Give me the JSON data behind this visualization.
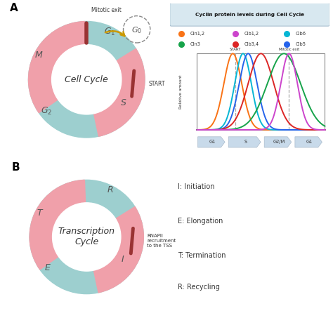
{
  "fig_width": 4.74,
  "fig_height": 4.53,
  "dpi": 100,
  "bg_color": "#ffffff",
  "light_blue": "#9dcfcf",
  "light_pink": "#f0a0aa",
  "dark_red": "#993333",
  "gold": "#cc9900",
  "panel_A_label": "A",
  "panel_B_label": "B",
  "cell_cycle_title": "Cell Cycle",
  "transcription_cycle_title": "Transcription\nCycle",
  "cyclin_box_title": "Cyclin protein levels during Cell Cycle",
  "legend_items": [
    {
      "label": "Cln1,2",
      "color": "#f97316"
    },
    {
      "label": "Clb1,2",
      "color": "#cc44cc"
    },
    {
      "label": "Clb6",
      "color": "#06b6d4"
    },
    {
      "label": "Cln3",
      "color": "#16a34a"
    },
    {
      "label": "Clb3,4",
      "color": "#dc2626"
    },
    {
      "label": "Clb5",
      "color": "#2563eb"
    }
  ],
  "cyclin_curves": [
    {
      "label": "Cln1,2",
      "color": "#f97316",
      "mu": 0.28,
      "sigma": 0.07
    },
    {
      "label": "Clb6",
      "color": "#06b6d4",
      "mu": 0.36,
      "sigma": 0.065
    },
    {
      "label": "Clb5",
      "color": "#2563eb",
      "mu": 0.4,
      "sigma": 0.07
    },
    {
      "label": "Clb3,4",
      "color": "#dc2626",
      "mu": 0.5,
      "sigma": 0.1
    },
    {
      "label": "Cln3",
      "color": "#16a34a",
      "mu": 0.68,
      "sigma": 0.13
    },
    {
      "label": "Clb1,2",
      "color": "#cc44cc",
      "mu": 0.72,
      "sigma": 0.065
    }
  ],
  "start_vline": 0.3,
  "mitotic_vline": 0.72,
  "phase_labels": [
    "G1",
    "S",
    "G2/M",
    "G1"
  ],
  "phase_bounds": [
    0.0,
    0.24,
    0.52,
    0.76,
    1.0
  ],
  "ylabel_cyclin": "Relative amount",
  "start_label": "START",
  "mitotic_exit_label": "Mitotic exit",
  "mitotic_exit_top": "Mitotic exit",
  "rnapii_label": "RNAPII\nrecruitment\nto the TSS",
  "g0_label": "G_0",
  "transcription_annotations": [
    "I: Initiation",
    "E: Elongation",
    "T: Termination",
    "R: Recycling"
  ]
}
